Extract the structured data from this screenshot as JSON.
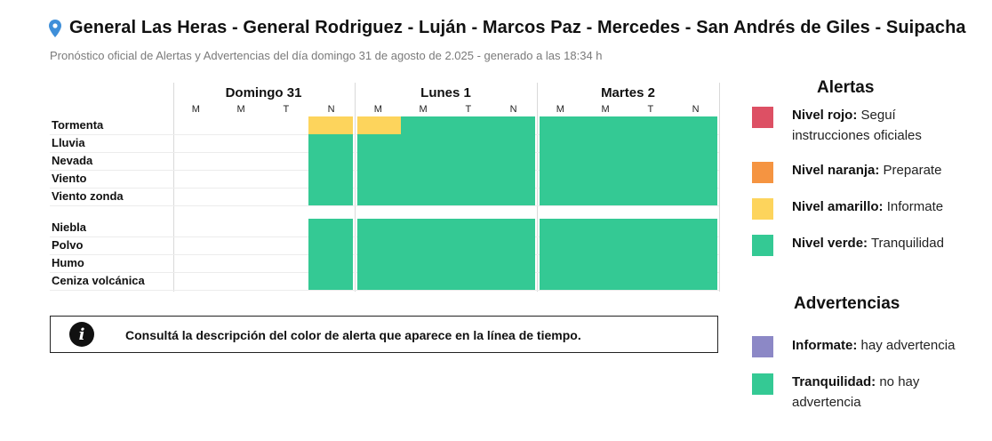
{
  "header": {
    "title": "General Las Heras - General Rodriguez - Luján - Marcos Paz - Mercedes - San Andrés de Giles - Suipacha",
    "subtitle": "Pronóstico oficial de Alertas y Advertencias del día domingo 31 de agosto de 2.025 - generado a las 18:34 h"
  },
  "days": [
    {
      "label": "Domingo 31",
      "slots": [
        "M",
        "M",
        "T",
        "N"
      ]
    },
    {
      "label": "Lunes 1",
      "slots": [
        "M",
        "M",
        "T",
        "N"
      ]
    },
    {
      "label": "Martes 2",
      "slots": [
        "M",
        "M",
        "T",
        "N"
      ]
    }
  ],
  "colors": {
    "verde": "#34c994",
    "amarillo": "#fdd45c",
    "naranja": "#f59441",
    "rojo": "#dd5064",
    "informate": "#8c88c6",
    "tranquilidad": "#34c994"
  },
  "alert_rows": [
    {
      "label": "Tormenta",
      "levels": [
        "none",
        "none",
        "none",
        "amarillo",
        "amarillo",
        "verde",
        "verde",
        "verde",
        "verde",
        "verde",
        "verde",
        "verde"
      ]
    },
    {
      "label": "Lluvia",
      "levels": [
        "none",
        "none",
        "none",
        "verde",
        "verde",
        "verde",
        "verde",
        "verde",
        "verde",
        "verde",
        "verde",
        "verde"
      ]
    },
    {
      "label": "Nevada",
      "levels": [
        "none",
        "none",
        "none",
        "verde",
        "verde",
        "verde",
        "verde",
        "verde",
        "verde",
        "verde",
        "verde",
        "verde"
      ]
    },
    {
      "label": "Viento",
      "levels": [
        "none",
        "none",
        "none",
        "verde",
        "verde",
        "verde",
        "verde",
        "verde",
        "verde",
        "verde",
        "verde",
        "verde"
      ]
    },
    {
      "label": "Viento zonda",
      "levels": [
        "none",
        "none",
        "none",
        "verde",
        "verde",
        "verde",
        "verde",
        "verde",
        "verde",
        "verde",
        "verde",
        "verde"
      ]
    }
  ],
  "warning_rows": [
    {
      "label": "Niebla",
      "levels": [
        "none",
        "none",
        "none",
        "tranquilidad",
        "tranquilidad",
        "tranquilidad",
        "tranquilidad",
        "tranquilidad",
        "tranquilidad",
        "tranquilidad",
        "tranquilidad",
        "tranquilidad"
      ]
    },
    {
      "label": "Polvo",
      "levels": [
        "none",
        "none",
        "none",
        "tranquilidad",
        "tranquilidad",
        "tranquilidad",
        "tranquilidad",
        "tranquilidad",
        "tranquilidad",
        "tranquilidad",
        "tranquilidad",
        "tranquilidad"
      ]
    },
    {
      "label": "Humo",
      "levels": [
        "none",
        "none",
        "none",
        "tranquilidad",
        "tranquilidad",
        "tranquilidad",
        "tranquilidad",
        "tranquilidad",
        "tranquilidad",
        "tranquilidad",
        "tranquilidad",
        "tranquilidad"
      ]
    },
    {
      "label": "Ceniza volcánica",
      "levels": [
        "none",
        "none",
        "none",
        "tranquilidad",
        "tranquilidad",
        "tranquilidad",
        "tranquilidad",
        "tranquilidad",
        "tranquilidad",
        "tranquilidad",
        "tranquilidad",
        "tranquilidad"
      ]
    }
  ],
  "info_box": {
    "icon": "info-icon",
    "text": "Consultá la descripción del color de alerta que aparece en la línea de tiempo."
  },
  "legend": {
    "alerts_title": "Alertas",
    "alerts": [
      {
        "name": "Nivel rojo:",
        "desc": " Seguí instrucciones oficiales",
        "color": "#dd5064"
      },
      {
        "name": "Nivel naranja:",
        "desc": " Preparate",
        "color": "#f59441"
      },
      {
        "name": "Nivel amarillo:",
        "desc": " Informate",
        "color": "#fdd45c"
      },
      {
        "name": "Nivel verde:",
        "desc": " Tranquilidad",
        "color": "#34c994"
      }
    ],
    "warnings_title": "Advertencias",
    "warnings": [
      {
        "name": "Informate:",
        "desc": " hay advertencia",
        "color": "#8c88c6"
      },
      {
        "name": "Tranquilidad:",
        "desc": " no hay advertencia",
        "color": "#34c994"
      }
    ]
  }
}
